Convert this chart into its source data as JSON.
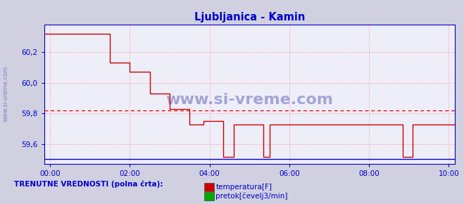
{
  "title": "Ljubljanica - Kamin",
  "title_color": "#0000cc",
  "bg_color": "#d0d0e0",
  "plot_bg_color": "#eeeef8",
  "grid_color": "#ff9999",
  "axis_color": "#0000cc",
  "tick_color": "#0000cc",
  "watermark_text": "www.si-vreme.com",
  "watermark_color": "#1a1a99",
  "sidebar_text": "www.si-vreme.com",
  "sidebar_color": "#3333aa",
  "ylim": [
    59.47,
    60.38
  ],
  "yticks": [
    59.6,
    59.8,
    60.0,
    60.2
  ],
  "ytick_labels": [
    "59,6",
    "59,8",
    "60,0",
    "60,2"
  ],
  "avg_line_y": 59.82,
  "avg_line_color": "#dd0000",
  "xtick_labels": [
    "00:00",
    "02:00",
    "04:00",
    "06:00",
    "08:00",
    "10:00"
  ],
  "xtick_positions": [
    0,
    2,
    4,
    6,
    8,
    10
  ],
  "xlim": [
    -0.15,
    10.15
  ],
  "legend_label1": "temperatura[F]",
  "legend_label2": "pretok[čevelj3/min]",
  "legend_color1": "#cc0000",
  "legend_color2": "#00aa00",
  "footer_text": "TRENUTNE VREDNOSTI (polna črta):",
  "footer_color": "#0000cc",
  "red_line_color": "#cc0000",
  "blue_line_color": "#0000cc",
  "temp_step_x": [
    -0.15,
    1.5,
    1.5,
    2.0,
    2.0,
    2.5,
    2.5,
    3.0,
    3.0,
    3.5,
    3.5,
    3.85,
    3.85,
    4.35,
    4.35,
    4.6,
    4.6,
    4.75,
    4.75,
    4.9,
    4.9,
    5.35,
    5.35,
    5.5,
    5.5,
    5.85,
    5.85,
    8.85,
    8.85,
    9.1,
    9.1,
    10.15
  ],
  "temp_step_y": [
    60.32,
    60.32,
    60.13,
    60.13,
    60.07,
    60.07,
    59.93,
    59.93,
    59.83,
    59.83,
    59.73,
    59.73,
    59.75,
    59.75,
    59.52,
    59.52,
    59.73,
    59.73,
    59.73,
    59.73,
    59.73,
    59.73,
    59.52,
    59.52,
    59.73,
    59.73,
    59.73,
    59.73,
    59.52,
    59.52,
    59.73,
    59.73
  ],
  "flow_y": 59.505
}
